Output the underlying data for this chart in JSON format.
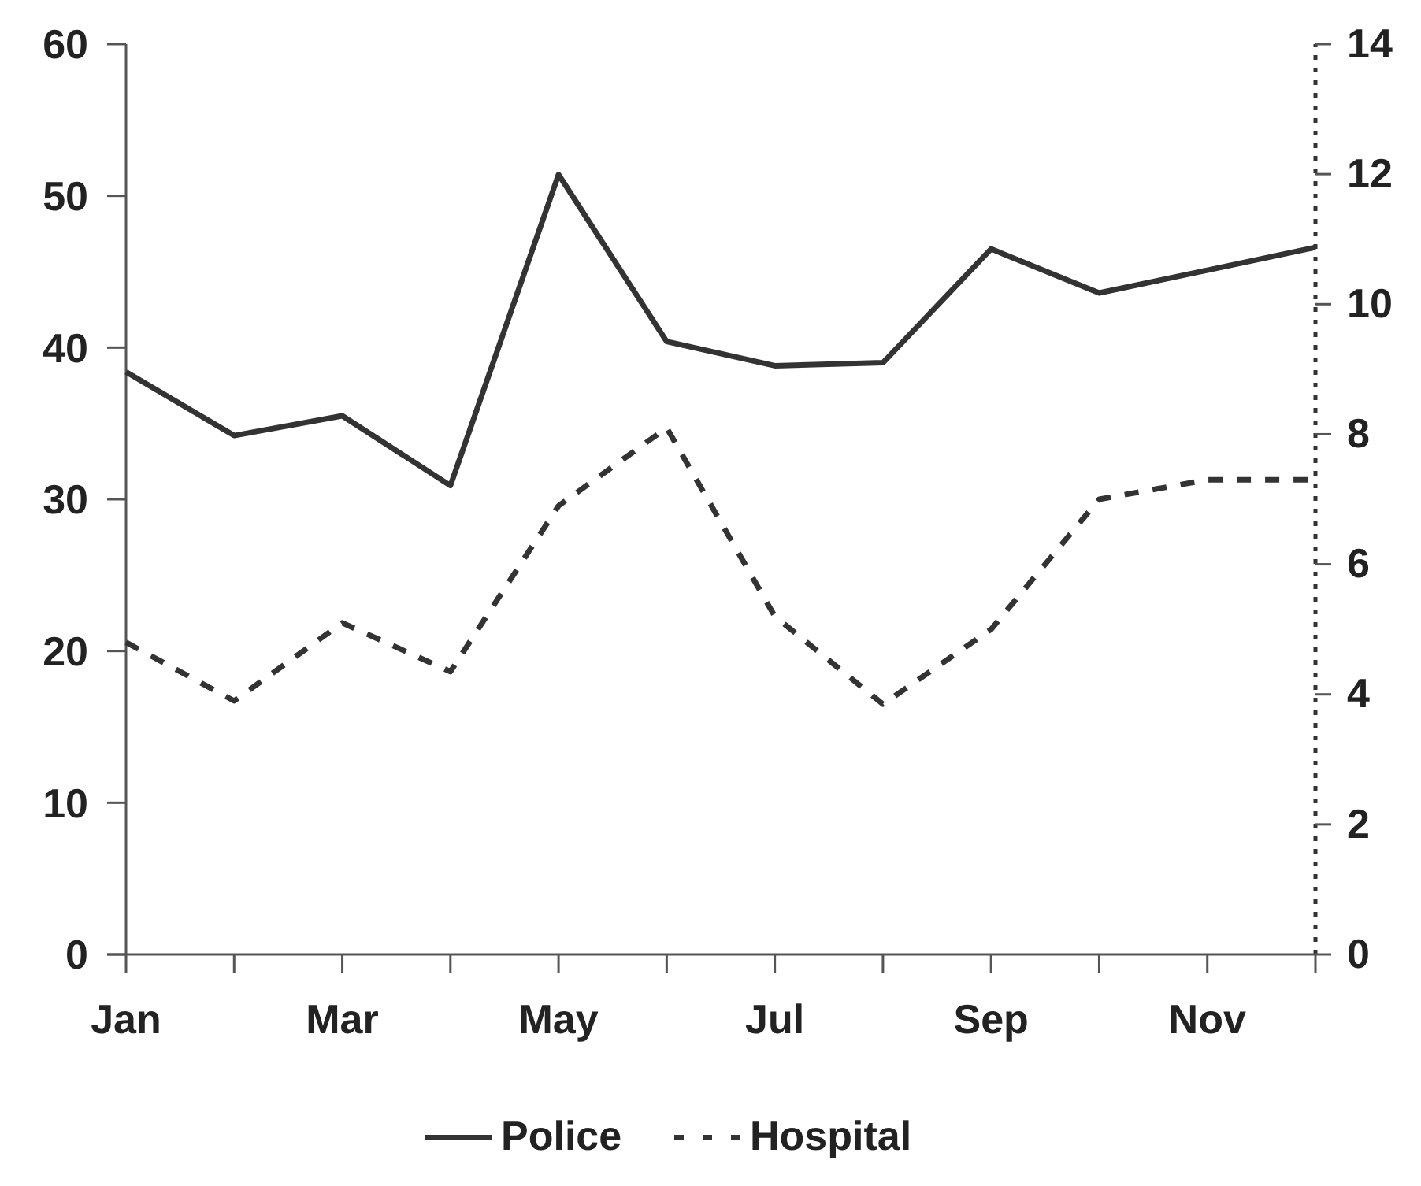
{
  "chart_data": {
    "type": "line",
    "categories": [
      "Jan",
      null,
      "Mar",
      null,
      "May",
      null,
      "Jul",
      null,
      "Sep",
      null,
      "Nov",
      null
    ],
    "series": [
      {
        "name": "Police",
        "color": "#333333",
        "line_style": "solid",
        "values": [
          38.4,
          34.2,
          35.5,
          30.9,
          51.4,
          40.4,
          38.8,
          39.0,
          46.5,
          43.6,
          45.1,
          46.6
        ]
      },
      {
        "name": "Hospital",
        "color": "#333333",
        "line_style": "dashed",
        "axis": "y2",
        "values": [
          4.8,
          3.9,
          5.1,
          4.35,
          6.9,
          8.1,
          5.2,
          3.85,
          5.0,
          7.0,
          7.3,
          7.3
        ]
      }
    ],
    "ylim": [
      0,
      60
    ],
    "yticks": [
      0,
      10,
      20,
      30,
      40,
      50,
      60
    ],
    "y2lim": [
      0,
      14
    ],
    "y2ticks": [
      0,
      2,
      4,
      6,
      8,
      10,
      12,
      14
    ],
    "grid": false,
    "legend": "bottom",
    "marker": "none"
  }
}
